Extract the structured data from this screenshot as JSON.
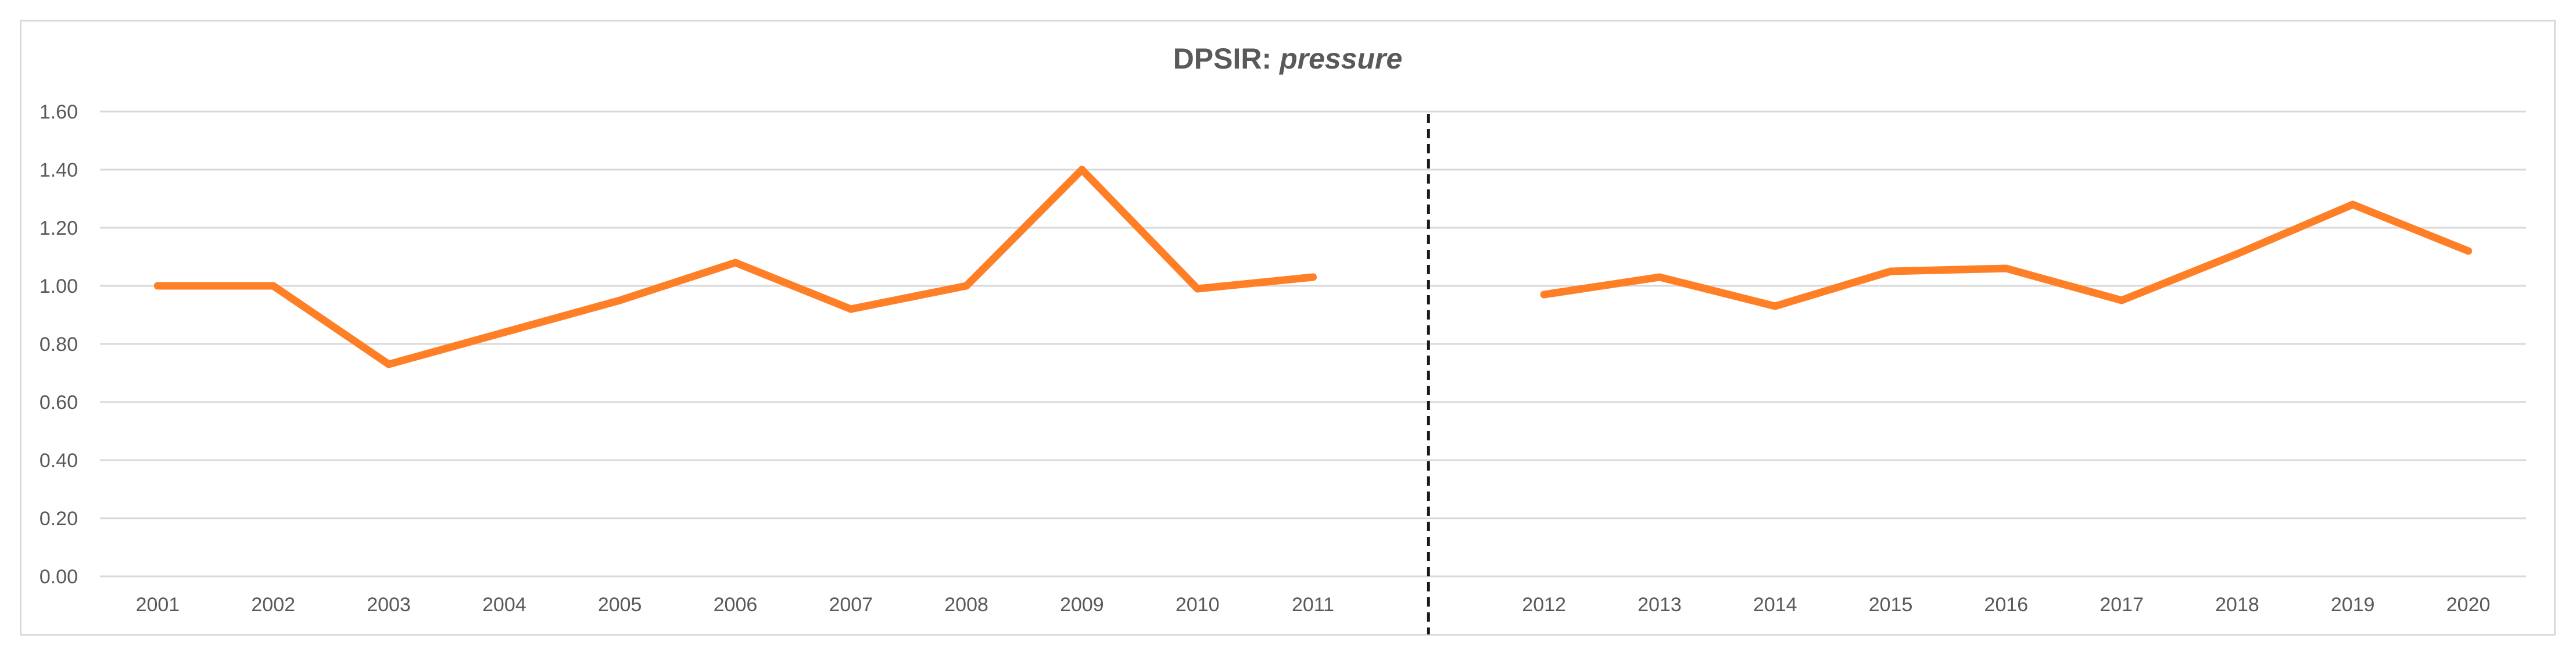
{
  "chart_data": {
    "type": "line",
    "title_prefix": "DPSIR: ",
    "title_emphasis": "pressure",
    "xlabel": "",
    "ylabel": "",
    "ylim": [
      0,
      1.6
    ],
    "y_ticks": [
      "0.00",
      "0.20",
      "0.40",
      "0.60",
      "0.80",
      "1.00",
      "1.20",
      "1.40",
      "1.60"
    ],
    "grid": true,
    "legend": "none",
    "line_color": "#ff7f27",
    "gridline_color": "#d9d9d9",
    "divider": {
      "style": "dashed",
      "between": [
        "2011",
        "2012"
      ]
    },
    "categories": [
      "2001",
      "2002",
      "2003",
      "2004",
      "2005",
      "2006",
      "2007",
      "2008",
      "2009",
      "2010",
      "2011",
      "",
      "2012",
      "2013",
      "2014",
      "2015",
      "2016",
      "2017",
      "2018",
      "2019",
      "2020"
    ],
    "series": [
      {
        "name": "pressure",
        "segments": [
          {
            "x": [
              "2001",
              "2002",
              "2003",
              "2004",
              "2005",
              "2006",
              "2007",
              "2008",
              "2009",
              "2010",
              "2011"
            ],
            "values": [
              1.0,
              1.0,
              0.73,
              0.84,
              0.95,
              1.08,
              0.92,
              1.0,
              1.4,
              0.99,
              1.03
            ]
          },
          {
            "x": [
              "2012",
              "2013",
              "2014",
              "2015",
              "2016",
              "2017",
              "2018",
              "2019",
              "2020"
            ],
            "values": [
              0.97,
              1.03,
              0.93,
              1.05,
              1.06,
              0.95,
              1.11,
              1.28,
              1.12
            ]
          }
        ]
      }
    ]
  }
}
